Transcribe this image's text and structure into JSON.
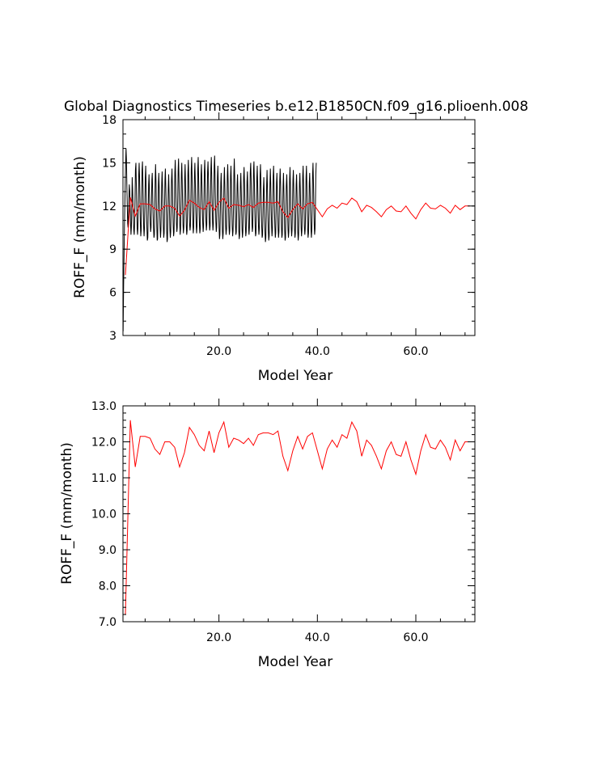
{
  "title": "Global Diagnostics Timeseries b.e12.B1850CN.f09_g16.plioenh.008",
  "colors": {
    "monthly": "#000000",
    "annual": "#ff0000"
  },
  "chart_data": [
    {
      "type": "line",
      "xlabel": "Model Year",
      "ylabel": "ROFF_F (mm/month)",
      "xlim": [
        0.5,
        72
      ],
      "ylim": [
        3,
        18
      ],
      "xticks": [
        20,
        40,
        60
      ],
      "xtick_labels": [
        "20.0",
        "40.0",
        "60.0"
      ],
      "yticks": [
        3,
        6,
        9,
        12,
        15,
        18
      ],
      "ytick_labels": [
        "3",
        "6",
        "9",
        "12",
        "15",
        "18"
      ],
      "x_start": 0.54,
      "x_step": 0.0833,
      "series": [
        {
          "color": "#000000",
          "values": [
            3.3,
            6.5,
            8.5,
            10.5,
            12,
            13.5,
            15,
            16,
            15.2,
            13.5,
            12,
            10.8,
            10.5,
            11.5,
            12.5,
            13.5,
            13,
            12,
            10.8,
            10,
            10.5,
            12,
            14,
            13.2,
            12,
            11,
            10.3,
            10,
            10.8,
            12.5,
            14.5,
            15,
            13.5,
            12,
            10.5,
            10,
            10.5,
            12,
            14.2,
            15,
            14,
            12.3,
            10.8,
            9.9,
            10.3,
            12,
            14.5,
            15.1,
            13.8,
            12,
            10.5,
            9.9,
            10.5,
            12,
            14,
            14.8,
            13.5,
            12,
            10.5,
            9.6,
            9.8,
            11.5,
            13.5,
            14.2,
            13,
            11.8,
            10.8,
            10.2,
            10.5,
            12,
            13.8,
            14.3,
            13,
            11.6,
            10.5,
            9.8,
            10,
            11.5,
            13.8,
            14.9,
            13.8,
            12,
            10.6,
            9.6,
            9.7,
            11.5,
            13.5,
            14.3,
            13.2,
            11.8,
            10.5,
            9.8,
            10.3,
            11.8,
            13.6,
            14.4,
            13.3,
            11.8,
            10.6,
            9.8,
            10.1,
            11.8,
            13.8,
            14.6,
            13.4,
            11.9,
            10.4,
            9.5,
            9.7,
            11.3,
            13.2,
            14.2,
            13,
            11.6,
            10.4,
            9.8,
            10.2,
            11.8,
            13.8,
            14.6,
            13.4,
            11.8,
            10.6,
            9.9,
            10.2,
            12,
            14.3,
            15.2,
            14,
            12.3,
            10.8,
            10.2,
            10.5,
            12.2,
            14.5,
            15.3,
            14,
            12.2,
            10.8,
            10,
            10.4,
            12,
            14.2,
            15,
            13.8,
            12.1,
            10.7,
            10.1,
            10.5,
            12,
            14,
            14.9,
            13.7,
            12,
            10.6,
            10,
            10.3,
            12,
            14.3,
            15.2,
            14,
            12.2,
            10.8,
            10.3,
            10.6,
            12.4,
            14.6,
            15.4,
            14.1,
            12.2,
            10.8,
            10.1,
            10.5,
            12.3,
            14.2,
            15,
            13.8,
            12,
            10.7,
            10.1,
            10.6,
            12.3,
            14.6,
            15.4,
            14,
            12.1,
            10.7,
            10.1,
            10.4,
            12.2,
            14.2,
            14.9,
            13.7,
            12.1,
            10.8,
            10.2,
            10.6,
            12.3,
            14.4,
            15.2,
            14,
            12.2,
            10.9,
            10.3,
            10.7,
            12.3,
            14.4,
            15.1,
            13.9,
            12.2,
            10.9,
            10.3,
            10.6,
            12.4,
            14.6,
            15.4,
            14.1,
            12.3,
            10.9,
            10.3,
            10.7,
            12.5,
            14.8,
            15.5,
            14.1,
            12.3,
            10.9,
            10.2,
            10.5,
            12,
            14,
            14.8,
            13.6,
            11.9,
            10.5,
            9.7,
            10,
            11.6,
            13.6,
            14.3,
            13.1,
            11.6,
            10.3,
            9.7,
            10.1,
            11.8,
            13.8,
            14.7,
            13.5,
            11.9,
            10.6,
            10,
            10.4,
            12,
            14.1,
            14.9,
            13.7,
            12,
            10.6,
            10,
            10.3,
            12,
            14.1,
            14.8,
            13.6,
            12,
            10.6,
            9.9,
            10.3,
            11.9,
            14.3,
            15.3,
            14,
            12.1,
            10.7,
            10,
            10.2,
            11.7,
            13.5,
            14.2,
            13,
            11.5,
            10.3,
            9.7,
            10,
            11.6,
            13.6,
            14.3,
            13.1,
            11.7,
            10.4,
            9.8,
            10.2,
            11.9,
            14,
            14.7,
            13.5,
            11.9,
            10.6,
            9.9,
            10.2,
            11.8,
            13.7,
            14.4,
            13.3,
            11.8,
            10.5,
            10,
            10.5,
            12.2,
            14.3,
            15,
            13.9,
            12.2,
            10.9,
            10.2,
            10.5,
            12.2,
            14.5,
            15.1,
            13.8,
            12,
            10.6,
            9.9,
            10.1,
            11.8,
            14,
            14.8,
            13.5,
            11.9,
            10.6,
            10,
            10.4,
            12,
            14.2,
            14.9,
            13.6,
            11.9,
            10.6,
            9.8,
            10,
            11.4,
            13.2,
            14,
            12.8,
            11.3,
            10.1,
            9.5,
            9.8,
            11.3,
            13.5,
            14.5,
            13.3,
            11.7,
            10.4,
            9.6,
            9.9,
            11.5,
            13.6,
            14.6,
            13.5,
            11.9,
            10.6,
            9.9,
            10.3,
            12,
            14.1,
            14.8,
            13.5,
            11.9,
            10.5,
            9.8,
            10.1,
            11.7,
            13.6,
            14.3,
            13.1,
            11.6,
            10.4,
            9.8,
            10.2,
            11.8,
            13.8,
            14.6,
            13.4,
            11.8,
            10.6,
            9.8,
            10,
            11.5,
            13.4,
            14.3,
            13.1,
            11.6,
            10.3,
            9.6,
            9.8,
            11.4,
            13.4,
            14.2,
            13,
            11.6,
            10.4,
            9.8,
            10.2,
            11.8,
            13.9,
            14.7,
            13.4,
            11.8,
            10.5,
            9.9,
            10.3,
            11.8,
            13.8,
            14.5,
            13.3,
            11.7,
            10.4,
            9.8,
            10.1,
            11.6,
            13.5,
            14.2,
            13,
            11.5,
            10.2,
            9.6,
            10,
            11.6,
            13.6,
            14.3,
            13.2,
            11.8,
            10.5,
            9.9,
            10.3,
            12,
            14.1,
            14.8,
            13.6,
            12,
            10.6,
            10,
            10.4,
            12,
            14,
            14.8,
            13.5,
            11.9,
            10.5,
            9.8,
            10.1,
            11.6,
            13.6,
            14.3,
            13.2,
            11.7,
            10.4,
            9.8,
            10.3,
            12,
            14.2,
            15,
            13.8,
            12.1,
            10.7,
            10,
            10.4,
            12.1,
            14.2,
            15
          ]
        },
        {
          "color": "#ff0000",
          "x": [
            1,
            2,
            3,
            4,
            5,
            6,
            7,
            8,
            9,
            10,
            11,
            12,
            13,
            14,
            15,
            16,
            17,
            18,
            19,
            20,
            21,
            22,
            23,
            24,
            25,
            26,
            27,
            28,
            29,
            30,
            31,
            32,
            33,
            34,
            35,
            36,
            37,
            38,
            39,
            40,
            41,
            42,
            43,
            44,
            45,
            46,
            47,
            48,
            49,
            50,
            51,
            52,
            53,
            54,
            55,
            56,
            57,
            58,
            59,
            60,
            61,
            62,
            63,
            64,
            65,
            66,
            67,
            68,
            69,
            70,
            71
          ],
          "values": [
            7.2,
            12.6,
            11.3,
            12.15,
            12.15,
            12.1,
            11.8,
            11.65,
            12.0,
            12.0,
            11.85,
            11.3,
            11.7,
            12.4,
            12.2,
            11.9,
            11.75,
            12.3,
            11.7,
            12.25,
            12.55,
            11.85,
            12.1,
            12.05,
            11.95,
            12.1,
            11.9,
            12.2,
            12.25,
            12.25,
            12.2,
            12.3,
            11.6,
            11.2,
            11.75,
            12.15,
            11.8,
            12.15,
            12.25,
            11.75,
            11.25,
            11.8,
            12.05,
            11.85,
            12.2,
            12.1,
            12.55,
            12.3,
            11.6,
            12.05,
            11.9,
            11.6,
            11.25,
            11.75,
            12.0,
            11.65,
            11.6,
            12.0,
            11.5,
            11.1,
            11.75,
            12.2,
            11.85,
            11.8,
            12.05,
            11.85,
            11.5,
            12.05,
            11.75,
            12.0,
            12.0
          ]
        }
      ]
    },
    {
      "type": "line",
      "xlabel": "Model Year",
      "ylabel": "ROFF_F (mm/month)",
      "xlim": [
        0.5,
        72
      ],
      "ylim": [
        7,
        13
      ],
      "xticks": [
        20,
        40,
        60
      ],
      "xtick_labels": [
        "20.0",
        "40.0",
        "60.0"
      ],
      "yticks": [
        7,
        8,
        9,
        10,
        11,
        12,
        13
      ],
      "ytick_labels": [
        "7.0",
        "8.0",
        "9.0",
        "10.0",
        "11.0",
        "12.0",
        "13.0"
      ],
      "series": [
        {
          "color": "#ff0000",
          "x": [
            1,
            2,
            3,
            4,
            5,
            6,
            7,
            8,
            9,
            10,
            11,
            12,
            13,
            14,
            15,
            16,
            17,
            18,
            19,
            20,
            21,
            22,
            23,
            24,
            25,
            26,
            27,
            28,
            29,
            30,
            31,
            32,
            33,
            34,
            35,
            36,
            37,
            38,
            39,
            40,
            41,
            42,
            43,
            44,
            45,
            46,
            47,
            48,
            49,
            50,
            51,
            52,
            53,
            54,
            55,
            56,
            57,
            58,
            59,
            60,
            61,
            62,
            63,
            64,
            65,
            66,
            67,
            68,
            69,
            70,
            71
          ],
          "values": [
            7.2,
            12.6,
            11.3,
            12.15,
            12.15,
            12.1,
            11.8,
            11.65,
            12.0,
            12.0,
            11.85,
            11.3,
            11.7,
            12.4,
            12.2,
            11.9,
            11.75,
            12.3,
            11.7,
            12.25,
            12.55,
            11.85,
            12.1,
            12.05,
            11.95,
            12.1,
            11.9,
            12.2,
            12.25,
            12.25,
            12.2,
            12.3,
            11.6,
            11.2,
            11.75,
            12.15,
            11.8,
            12.15,
            12.25,
            11.75,
            11.25,
            11.8,
            12.05,
            11.85,
            12.2,
            12.1,
            12.55,
            12.3,
            11.6,
            12.05,
            11.9,
            11.6,
            11.25,
            11.75,
            12.0,
            11.65,
            11.6,
            12.0,
            11.5,
            11.1,
            11.75,
            12.2,
            11.85,
            11.8,
            12.05,
            11.85,
            11.5,
            12.05,
            11.75,
            12.0,
            12.0
          ]
        }
      ]
    }
  ]
}
